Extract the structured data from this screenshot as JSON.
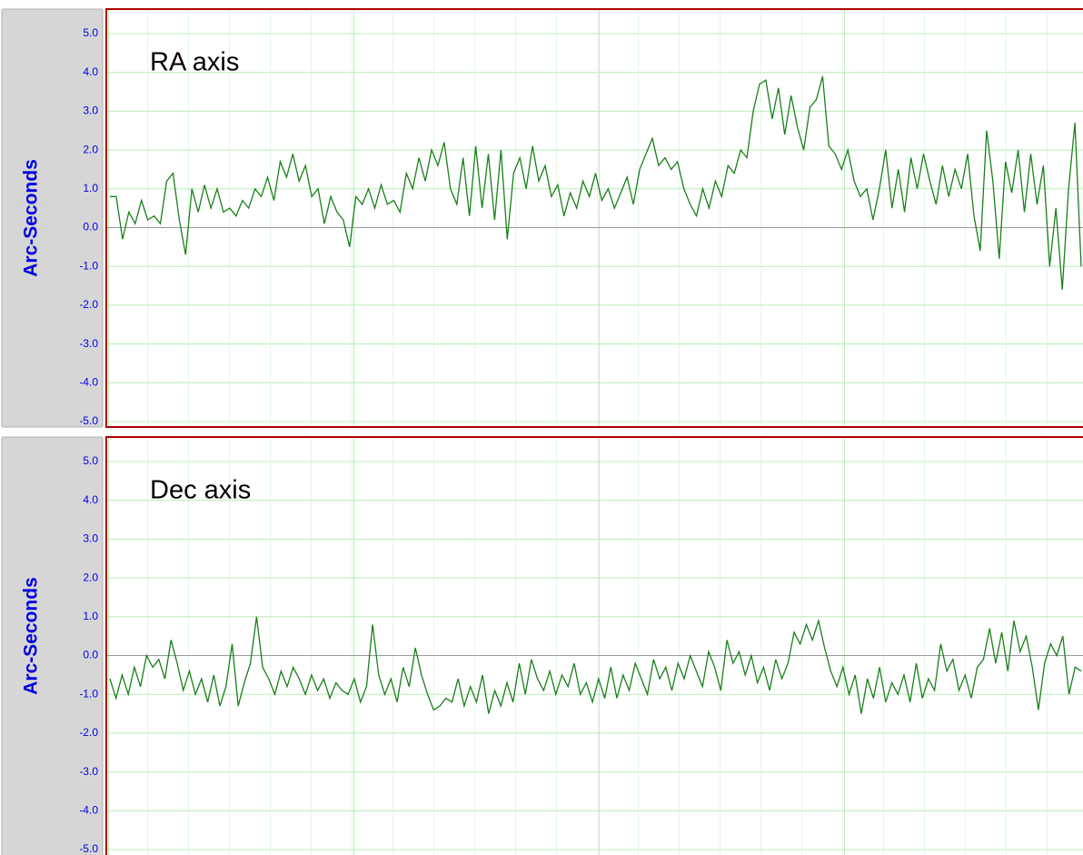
{
  "chart_data": [
    {
      "type": "line",
      "title": "RA axis",
      "ylabel": "Arc-Seconds",
      "ylim": [
        -5,
        5
      ],
      "yticks": [
        {
          "value": 5,
          "label": "5.0"
        },
        {
          "value": 4,
          "label": "4.0"
        },
        {
          "value": 3,
          "label": "3.0"
        },
        {
          "value": 2,
          "label": "2.0"
        },
        {
          "value": 1,
          "label": "1.0"
        },
        {
          "value": 0,
          "label": "0.0"
        },
        {
          "value": -1,
          "label": "-1.0"
        },
        {
          "value": -2,
          "label": "-2.0"
        },
        {
          "value": -3,
          "label": "-3.0"
        },
        {
          "value": -4,
          "label": "-4.0"
        },
        {
          "value": -5,
          "label": "-5.0"
        }
      ],
      "grid": true,
      "series": [
        {
          "color": "#1a7f1a",
          "values": [
            0.8,
            0.8,
            -0.3,
            0.4,
            0.1,
            0.7,
            0.2,
            0.3,
            0.1,
            1.2,
            1.4,
            0.2,
            -0.7,
            1.0,
            0.4,
            1.1,
            0.5,
            1.0,
            0.4,
            0.5,
            0.3,
            0.7,
            0.5,
            1.0,
            0.8,
            1.3,
            0.7,
            1.7,
            1.3,
            1.9,
            1.2,
            1.6,
            0.8,
            1.0,
            0.1,
            0.8,
            0.4,
            0.2,
            -0.5,
            0.8,
            0.6,
            1.0,
            0.5,
            1.1,
            0.6,
            0.7,
            0.4,
            1.4,
            1.0,
            1.8,
            1.2,
            2.0,
            1.6,
            2.2,
            1.0,
            0.6,
            1.8,
            0.3,
            2.1,
            0.5,
            1.9,
            0.2,
            2.0,
            -0.3,
            1.4,
            1.8,
            1.0,
            2.1,
            1.2,
            1.6,
            0.8,
            1.1,
            0.3,
            0.9,
            0.5,
            1.2,
            0.8,
            1.4,
            0.7,
            1.0,
            0.5,
            0.9,
            1.3,
            0.6,
            1.5,
            1.9,
            2.3,
            1.6,
            1.8,
            1.5,
            1.7,
            1.0,
            0.6,
            0.3,
            1.0,
            0.5,
            1.2,
            0.8,
            1.6,
            1.4,
            2.0,
            1.8,
            3.0,
            3.7,
            3.8,
            2.8,
            3.6,
            2.4,
            3.4,
            2.6,
            2.0,
            3.1,
            3.3,
            3.9,
            2.1,
            1.9,
            1.5,
            2.0,
            1.2,
            0.8,
            1.0,
            0.2,
            1.0,
            2.0,
            0.5,
            1.5,
            0.4,
            1.8,
            1.0,
            1.9,
            1.2,
            0.6,
            1.6,
            0.8,
            1.5,
            1.0,
            1.9,
            0.3,
            -0.6,
            2.5,
            1.2,
            -0.8,
            1.7,
            0.9,
            2.0,
            0.4,
            1.9,
            0.6,
            1.6,
            -1.0,
            0.5,
            -1.6,
            1.0,
            2.7,
            -1.0
          ]
        }
      ]
    },
    {
      "type": "line",
      "title": "Dec axis",
      "ylabel": "Arc-Seconds",
      "ylim": [
        -5,
        5
      ],
      "yticks": [
        {
          "value": 5,
          "label": "5.0"
        },
        {
          "value": 4,
          "label": "4.0"
        },
        {
          "value": 3,
          "label": "3.0"
        },
        {
          "value": 2,
          "label": "2.0"
        },
        {
          "value": 1,
          "label": "1.0"
        },
        {
          "value": 0,
          "label": "0.0"
        },
        {
          "value": -1,
          "label": "-1.0"
        },
        {
          "value": -2,
          "label": "-2.0"
        },
        {
          "value": -3,
          "label": "-3.0"
        },
        {
          "value": -4,
          "label": "-4.0"
        },
        {
          "value": -5,
          "label": "-5.0"
        }
      ],
      "grid": true,
      "series": [
        {
          "color": "#1a7f1a",
          "values": [
            -0.6,
            -1.1,
            -0.5,
            -1.0,
            -0.3,
            -0.8,
            0.0,
            -0.3,
            -0.1,
            -0.6,
            0.4,
            -0.2,
            -0.9,
            -0.4,
            -1.0,
            -0.6,
            -1.2,
            -0.5,
            -1.3,
            -0.8,
            0.3,
            -1.3,
            -0.7,
            -0.2,
            1.0,
            -0.3,
            -0.6,
            -1.0,
            -0.4,
            -0.8,
            -0.3,
            -0.6,
            -1.0,
            -0.5,
            -0.9,
            -0.6,
            -1.1,
            -0.7,
            -0.9,
            -1.0,
            -0.6,
            -1.2,
            -0.8,
            0.8,
            -0.5,
            -1.0,
            -0.6,
            -1.2,
            -0.3,
            -0.8,
            0.2,
            -0.5,
            -1.0,
            -1.4,
            -1.3,
            -1.1,
            -1.2,
            -0.6,
            -1.3,
            -0.8,
            -1.2,
            -0.5,
            -1.5,
            -0.9,
            -1.3,
            -0.7,
            -1.2,
            -0.2,
            -1.0,
            -0.1,
            -0.6,
            -0.9,
            -0.4,
            -1.0,
            -0.5,
            -0.8,
            -0.2,
            -1.0,
            -0.7,
            -1.2,
            -0.6,
            -1.1,
            -0.3,
            -1.1,
            -0.5,
            -0.9,
            -0.2,
            -0.6,
            -1.0,
            -0.1,
            -0.6,
            -0.3,
            -0.9,
            -0.2,
            -0.6,
            0.0,
            -0.4,
            -0.8,
            0.1,
            -0.3,
            -0.9,
            0.4,
            -0.2,
            0.1,
            -0.5,
            0.0,
            -0.7,
            -0.3,
            -0.9,
            -0.1,
            -0.6,
            -0.2,
            0.6,
            0.3,
            0.8,
            0.4,
            0.9,
            0.2,
            -0.4,
            -0.8,
            -0.3,
            -1.0,
            -0.5,
            -1.5,
            -0.6,
            -1.1,
            -0.3,
            -1.2,
            -0.7,
            -1.0,
            -0.5,
            -1.2,
            -0.2,
            -1.1,
            -0.6,
            -0.9,
            0.3,
            -0.4,
            -0.1,
            -0.9,
            -0.5,
            -1.1,
            -0.3,
            -0.1,
            0.7,
            -0.2,
            0.6,
            -0.4,
            0.9,
            0.1,
            0.5,
            -0.3,
            -1.4,
            -0.2,
            0.3,
            0.0,
            0.5,
            -1.0,
            -0.3,
            -0.4
          ]
        }
      ]
    }
  ]
}
